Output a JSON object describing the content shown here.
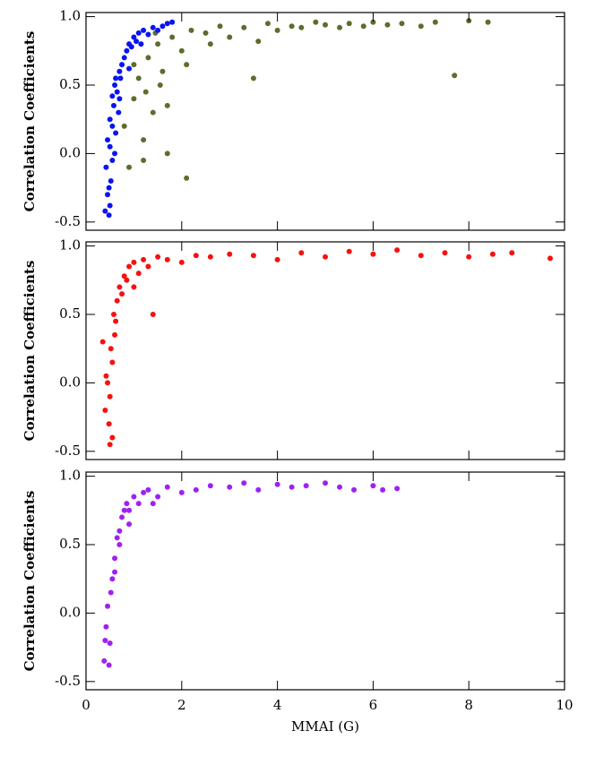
{
  "chart_data": [
    {
      "type": "scatter",
      "ylabel": "Correlation Coefficients",
      "xlim": [
        0,
        10
      ],
      "ylim": [
        -0.56,
        1.03
      ],
      "yticks": [
        -0.5,
        {
          "value": 0,
          "label": "0.0"
        },
        0.5,
        {
          "value": 1,
          "label": "1.0"
        }
      ],
      "series": [
        {
          "name": null,
          "color": "#5a6e2e",
          "x": [
            0.8,
            0.9,
            1.0,
            1.1,
            1.2,
            1.3,
            1.4,
            1.5,
            1.6,
            1.7,
            1.8,
            2.0,
            2.1,
            2.2,
            2.5,
            2.8,
            3.0,
            3.3,
            3.5,
            3.8,
            4.0,
            4.3,
            4.5,
            4.8,
            5.0,
            5.3,
            5.5,
            5.8,
            6.0,
            6.3,
            6.6,
            7.0,
            7.3,
            7.7,
            8.0,
            8.4,
            1.0,
            1.25,
            1.45,
            1.55,
            2.1,
            2.6,
            3.6,
            1.2,
            1.7
          ],
          "values": [
            0.2,
            -0.1,
            0.4,
            0.55,
            0.1,
            0.7,
            0.3,
            0.8,
            0.6,
            0.0,
            0.85,
            0.75,
            -0.18,
            0.9,
            0.88,
            0.93,
            0.85,
            0.92,
            0.55,
            0.95,
            0.9,
            0.93,
            0.92,
            0.96,
            0.94,
            0.92,
            0.95,
            0.93,
            0.96,
            0.94,
            0.95,
            0.93,
            0.96,
            0.57,
            0.97,
            0.96,
            0.65,
            0.45,
            0.88,
            0.5,
            0.65,
            0.8,
            0.82,
            -0.05,
            0.35
          ]
        },
        {
          "name": null,
          "color": "#0a14f0",
          "x": [
            0.42,
            0.45,
            0.48,
            0.5,
            0.52,
            0.55,
            0.45,
            0.5,
            0.58,
            0.6,
            0.62,
            0.55,
            0.65,
            0.7,
            0.68,
            0.75,
            0.8,
            0.72,
            0.85,
            0.9,
            0.95,
            1.0,
            1.05,
            1.1,
            1.2,
            1.3,
            1.4,
            1.5,
            1.6,
            1.7,
            1.8,
            0.5,
            0.6,
            0.4,
            0.55,
            0.7,
            0.9,
            1.15,
            0.48,
            0.62
          ],
          "values": [
            -0.1,
            -0.3,
            -0.45,
            0.05,
            -0.2,
            0.2,
            0.1,
            -0.38,
            0.35,
            0.5,
            0.15,
            -0.05,
            0.45,
            0.6,
            0.3,
            0.65,
            0.7,
            0.55,
            0.75,
            0.8,
            0.78,
            0.85,
            0.82,
            0.88,
            0.9,
            0.87,
            0.92,
            0.9,
            0.93,
            0.95,
            0.96,
            0.25,
            0.0,
            -0.42,
            0.42,
            0.4,
            0.62,
            0.8,
            -0.25,
            0.55
          ]
        }
      ]
    },
    {
      "type": "scatter",
      "ylabel": "Correlation Coefficients",
      "xlim": [
        0,
        10
      ],
      "ylim": [
        -0.56,
        1.03
      ],
      "yticks": [
        -0.5,
        {
          "value": 0,
          "label": "0.0"
        },
        0.5,
        {
          "value": 1,
          "label": "1.0"
        }
      ],
      "series": [
        {
          "name": null,
          "color": "#f81010",
          "x": [
            0.35,
            0.4,
            0.45,
            0.5,
            0.55,
            0.6,
            0.48,
            0.52,
            0.58,
            0.65,
            0.7,
            0.75,
            0.8,
            0.85,
            0.9,
            1.0,
            1.1,
            1.2,
            1.4,
            1.5,
            1.7,
            2.0,
            2.3,
            2.6,
            3.0,
            3.5,
            4.0,
            4.5,
            5.0,
            5.5,
            6.0,
            6.5,
            7.0,
            7.5,
            8.0,
            8.5,
            8.9,
            9.7,
            0.42,
            0.62,
            1.0,
            1.3,
            0.5,
            0.55
          ],
          "values": [
            0.3,
            -0.2,
            0.0,
            -0.45,
            0.15,
            0.35,
            -0.3,
            0.25,
            0.5,
            0.6,
            0.7,
            0.65,
            0.78,
            0.75,
            0.85,
            0.88,
            0.8,
            0.9,
            0.5,
            0.92,
            0.9,
            0.88,
            0.93,
            0.92,
            0.94,
            0.93,
            0.9,
            0.95,
            0.92,
            0.96,
            0.94,
            0.97,
            0.93,
            0.95,
            0.92,
            0.94,
            0.95,
            0.91,
            0.05,
            0.45,
            0.7,
            0.85,
            -0.1,
            -0.4
          ]
        }
      ]
    },
    {
      "type": "scatter",
      "ylabel": "Correlation Coefficients",
      "xlabel": "MMAI (G)",
      "xlim": [
        0,
        10
      ],
      "xticks": [
        0,
        2,
        4,
        6,
        8,
        10
      ],
      "ylim": [
        -0.56,
        1.03
      ],
      "yticks": [
        -0.5,
        {
          "value": 0,
          "label": "0.0"
        },
        0.5,
        {
          "value": 1,
          "label": "1.0"
        }
      ],
      "series": [
        {
          "name": null,
          "color": "#a020f0",
          "x": [
            0.38,
            0.4,
            0.45,
            0.5,
            0.55,
            0.6,
            0.65,
            0.7,
            0.75,
            0.8,
            0.85,
            0.9,
            1.0,
            1.1,
            1.2,
            1.3,
            1.5,
            1.7,
            2.0,
            2.3,
            2.6,
            3.0,
            3.3,
            3.6,
            4.0,
            4.3,
            4.6,
            5.0,
            5.3,
            5.6,
            6.0,
            6.2,
            6.5,
            0.48,
            0.52,
            0.6,
            0.7,
            0.9,
            1.4,
            0.42
          ],
          "values": [
            -0.35,
            -0.2,
            0.05,
            -0.22,
            0.25,
            0.4,
            0.55,
            0.6,
            0.7,
            0.75,
            0.8,
            0.65,
            0.85,
            0.8,
            0.88,
            0.9,
            0.85,
            0.92,
            0.88,
            0.9,
            0.93,
            0.92,
            0.95,
            0.9,
            0.94,
            0.92,
            0.93,
            0.95,
            0.92,
            0.9,
            0.93,
            0.9,
            0.91,
            -0.38,
            0.15,
            0.3,
            0.5,
            0.75,
            0.8,
            -0.1
          ]
        }
      ]
    }
  ]
}
